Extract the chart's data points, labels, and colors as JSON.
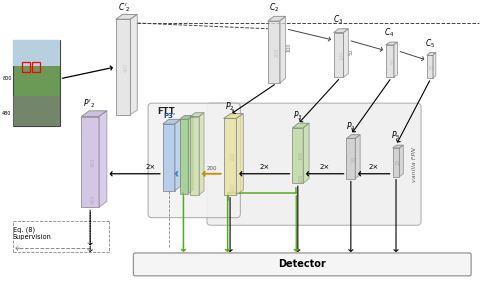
{
  "fig_bg": "#ffffff",
  "detector_label": "Detector",
  "ftt_label": "FTT",
  "vanilla_fpn_label": "vanilla FPN",
  "eq_label": "Eq. (8)\nSupervision",
  "note_2x": "2×"
}
